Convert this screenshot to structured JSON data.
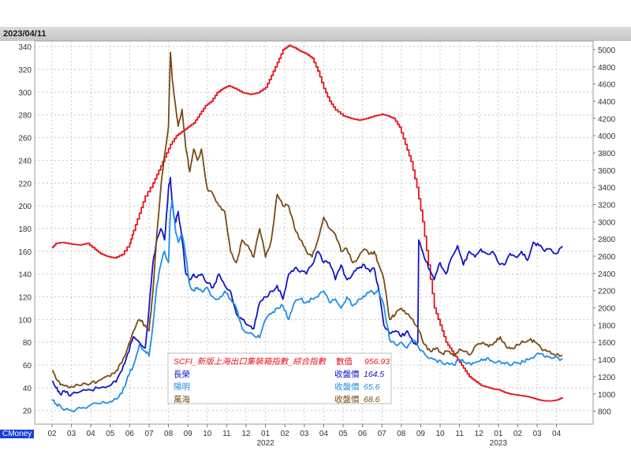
{
  "header": {
    "date": "2023/04/11"
  },
  "footer": {
    "credit": "CMoney"
  },
  "chart_data": {
    "type": "line",
    "title": "",
    "xlabel": "",
    "ylabel": "",
    "x_ticks": [
      "02",
      "03",
      "04",
      "05",
      "06",
      "07",
      "08",
      "09",
      "10",
      "11",
      "12",
      "01",
      "02",
      "03",
      "04",
      "05",
      "06",
      "07",
      "08",
      "09",
      "10",
      "11",
      "12",
      "01",
      "02",
      "03",
      "04"
    ],
    "year_labels": [
      {
        "label": "2022",
        "tick_index": 11
      },
      {
        "label": "2023",
        "tick_index": 23
      }
    ],
    "y_left": {
      "ticks": [
        20,
        40,
        60,
        80,
        100,
        120,
        140,
        160,
        180,
        200,
        220,
        240,
        260,
        280,
        300,
        320,
        340
      ],
      "ylim": [
        8,
        345
      ]
    },
    "y_right": {
      "ticks": [
        800,
        1000,
        1200,
        1400,
        1600,
        1800,
        2000,
        2200,
        2400,
        2600,
        2800,
        3000,
        3200,
        3400,
        3600,
        3800,
        4000,
        4200,
        4400,
        4600,
        4800,
        5000
      ],
      "ylim": [
        650,
        5100
      ]
    },
    "legend": {
      "position": "bottom-center",
      "entries": [
        {
          "name": "SCFI_新版上海出口集裝箱指數_綜合指數",
          "value_label": "數值",
          "value": "956.93",
          "color": "#e8141b"
        },
        {
          "name": "長榮",
          "value_label": "收盤價",
          "value": "164.5",
          "color": "#1414c8"
        },
        {
          "name": "陽明",
          "value_label": "收盤價",
          "value": "65.6",
          "color": "#1e8fe6"
        },
        {
          "name": "萬海",
          "value_label": "收盤價",
          "value": "68.6",
          "color": "#7a4a14"
        }
      ]
    },
    "series": [
      {
        "name": "SCFI_新版上海出口集裝箱指數_綜合指數",
        "axis": "right",
        "color": "#e8141b",
        "x": [
          0,
          0.2,
          0.5,
          1.0,
          1.4,
          1.8,
          2.2,
          2.5,
          2.8,
          3.2,
          3.6,
          4.0,
          4.2,
          4.5,
          4.8,
          5.2,
          5.5,
          5.8,
          6.1,
          6.4,
          6.7,
          7.0,
          7.3,
          7.6,
          7.9,
          8.2,
          8.5,
          8.8,
          9.1,
          9.4,
          9.8,
          10.2,
          10.6,
          11.0,
          11.3,
          11.6,
          11.9,
          12.2,
          12.5,
          12.8,
          13.1,
          13.4,
          13.7,
          14.0,
          14.3,
          14.6,
          15.0,
          15.4,
          15.8,
          16.2,
          16.6,
          17.0,
          17.3,
          17.6,
          17.9,
          18.2,
          18.5,
          18.8,
          19.1,
          19.4,
          19.7,
          20.0,
          20.3,
          20.6,
          20.9,
          21.2,
          21.5,
          21.8,
          22.1,
          22.4,
          22.7,
          23.0,
          23.3,
          23.6,
          23.9,
          24.2,
          24.5,
          24.8,
          25.1,
          25.4,
          25.7,
          26.0,
          26.3
        ],
        "values": [
          2700,
          2750,
          2760,
          2740,
          2730,
          2750,
          2680,
          2630,
          2600,
          2580,
          2620,
          2750,
          2900,
          3100,
          3300,
          3450,
          3600,
          3750,
          3900,
          4000,
          4050,
          4100,
          4150,
          4250,
          4350,
          4400,
          4500,
          4550,
          4580,
          4550,
          4500,
          4480,
          4500,
          4560,
          4700,
          4850,
          5000,
          5050,
          5020,
          4980,
          4950,
          4900,
          4750,
          4550,
          4400,
          4300,
          4230,
          4200,
          4180,
          4200,
          4230,
          4250,
          4230,
          4200,
          4100,
          3900,
          3700,
          3400,
          3000,
          2500,
          2000,
          1800,
          1600,
          1500,
          1400,
          1300,
          1200,
          1150,
          1100,
          1080,
          1060,
          1050,
          1020,
          1000,
          990,
          980,
          970,
          950,
          930,
          920,
          920,
          930,
          960
        ]
      },
      {
        "name": "長榮",
        "axis": "left",
        "color": "#1414c8",
        "x": [
          0,
          0.2,
          0.4,
          0.7,
          1.0,
          1.5,
          2.0,
          2.5,
          3.0,
          3.3,
          3.6,
          3.9,
          4.2,
          4.5,
          4.8,
          5.0,
          5.2,
          5.4,
          5.6,
          5.8,
          6.0,
          6.1,
          6.2,
          6.35,
          6.5,
          6.7,
          6.9,
          7.1,
          7.3,
          7.5,
          7.7,
          8.0,
          8.3,
          8.6,
          8.9,
          9.2,
          9.5,
          9.8,
          10.1,
          10.4,
          10.7,
          11.0,
          11.3,
          11.6,
          11.9,
          12.2,
          12.5,
          12.8,
          13.1,
          13.4,
          13.7,
          14.0,
          14.3,
          14.6,
          14.9,
          15.2,
          15.5,
          15.8,
          16.1,
          16.4,
          16.6,
          16.8,
          17.1,
          17.4,
          17.7,
          18.0,
          18.3,
          18.6,
          18.8,
          18.85,
          18.9,
          19.1,
          19.4,
          19.7,
          20.0,
          20.3,
          20.6,
          20.9,
          21.2,
          21.5,
          21.8,
          22.1,
          22.4,
          22.7,
          23.0,
          23.3,
          23.6,
          23.9,
          24.2,
          24.5,
          24.8,
          25.1,
          25.4,
          25.7,
          26.0,
          26.3
        ],
        "values": [
          45,
          40,
          35,
          36,
          34,
          37,
          38,
          40,
          42,
          45,
          55,
          70,
          85,
          80,
          75,
          110,
          150,
          170,
          180,
          170,
          215,
          225,
          200,
          185,
          195,
          170,
          140,
          135,
          140,
          138,
          140,
          132,
          128,
          140,
          130,
          125,
          105,
          100,
          95,
          92,
          115,
          120,
          125,
          130,
          118,
          140,
          145,
          142,
          140,
          148,
          160,
          150,
          150,
          135,
          148,
          135,
          140,
          145,
          148,
          142,
          145,
          130,
          95,
          88,
          90,
          85,
          90,
          80,
          78,
          80,
          170,
          160,
          145,
          135,
          150,
          140,
          155,
          165,
          148,
          160,
          155,
          162,
          158,
          160,
          150,
          148,
          158,
          155,
          160,
          152,
          168,
          165,
          160,
          162,
          158,
          164.5
        ]
      },
      {
        "name": "陽明",
        "axis": "left",
        "color": "#1e8fe6",
        "x": [
          0,
          0.2,
          0.5,
          1.0,
          1.5,
          2.0,
          2.5,
          3.0,
          3.3,
          3.6,
          3.9,
          4.2,
          4.5,
          4.8,
          5.0,
          5.2,
          5.4,
          5.6,
          5.8,
          6.0,
          6.1,
          6.2,
          6.35,
          6.5,
          6.7,
          6.9,
          7.1,
          7.3,
          7.5,
          7.7,
          8.0,
          8.3,
          8.6,
          8.9,
          9.2,
          9.5,
          9.8,
          10.1,
          10.4,
          10.7,
          11.0,
          11.3,
          11.6,
          11.9,
          12.2,
          12.5,
          12.8,
          13.1,
          13.4,
          13.7,
          14.0,
          14.3,
          14.6,
          14.9,
          15.2,
          15.5,
          15.8,
          16.1,
          16.4,
          16.6,
          16.8,
          17.1,
          17.4,
          17.7,
          18.0,
          18.3,
          18.6,
          18.9,
          19.2,
          19.5,
          19.8,
          20.1,
          20.4,
          20.7,
          21.0,
          21.3,
          21.6,
          21.9,
          22.2,
          22.5,
          22.8,
          23.1,
          23.4,
          23.7,
          24.0,
          24.3,
          24.6,
          24.9,
          25.2,
          25.5,
          25.8,
          26.3
        ],
        "values": [
          30,
          26,
          22,
          20,
          22,
          25,
          26,
          28,
          30,
          35,
          50,
          60,
          78,
          72,
          68,
          95,
          130,
          148,
          160,
          150,
          195,
          205,
          180,
          168,
          175,
          155,
          130,
          125,
          128,
          125,
          128,
          120,
          118,
          125,
          118,
          110,
          92,
          88,
          86,
          84,
          100,
          105,
          110,
          112,
          100,
          115,
          118,
          115,
          118,
          120,
          125,
          115,
          118,
          110,
          120,
          112,
          118,
          120,
          125,
          122,
          126,
          112,
          82,
          78,
          80,
          75,
          82,
          75,
          70,
          66,
          64,
          62,
          62,
          60,
          65,
          62,
          60,
          63,
          64,
          66,
          62,
          63,
          62,
          60,
          62,
          63,
          65,
          68,
          70,
          68,
          66,
          65.6
        ]
      },
      {
        "name": "萬海",
        "axis": "left",
        "color": "#7a4a14",
        "x": [
          0,
          0.2,
          0.5,
          1.0,
          1.5,
          2.0,
          2.5,
          3.0,
          3.3,
          3.6,
          3.9,
          4.2,
          4.5,
          4.8,
          5.0,
          5.2,
          5.4,
          5.6,
          5.8,
          6.0,
          6.1,
          6.2,
          6.35,
          6.5,
          6.7,
          6.9,
          7.1,
          7.3,
          7.5,
          7.7,
          8.0,
          8.3,
          8.6,
          8.9,
          9.2,
          9.5,
          9.8,
          10.1,
          10.4,
          10.7,
          11.0,
          11.3,
          11.6,
          11.9,
          12.2,
          12.5,
          12.8,
          13.1,
          13.4,
          13.7,
          14.0,
          14.3,
          14.6,
          14.9,
          15.2,
          15.5,
          15.8,
          16.1,
          16.4,
          16.6,
          16.8,
          17.1,
          17.4,
          17.7,
          18.0,
          18.3,
          18.6,
          18.9,
          19.2,
          19.5,
          19.8,
          20.1,
          20.4,
          20.7,
          21.0,
          21.3,
          21.6,
          21.9,
          22.2,
          22.5,
          22.8,
          23.1,
          23.4,
          23.7,
          24.0,
          24.3,
          24.6,
          24.9,
          25.2,
          25.5,
          25.8,
          26.3
        ],
        "values": [
          55,
          48,
          43,
          41,
          42,
          44,
          47,
          50,
          55,
          62,
          75,
          90,
          100,
          95,
          90,
          125,
          175,
          215,
          245,
          270,
          335,
          310,
          290,
          270,
          285,
          250,
          230,
          250,
          240,
          250,
          215,
          210,
          200,
          195,
          160,
          150,
          170,
          165,
          155,
          180,
          155,
          170,
          210,
          200,
          200,
          180,
          170,
          160,
          155,
          170,
          190,
          180,
          175,
          160,
          162,
          150,
          155,
          162,
          158,
          160,
          150,
          135,
          100,
          105,
          110,
          105,
          100,
          90,
          78,
          72,
          75,
          70,
          72,
          68,
          74,
          72,
          70,
          78,
          80,
          76,
          80,
          85,
          76,
          75,
          78,
          80,
          82,
          80,
          75,
          72,
          70,
          68.6
        ]
      }
    ]
  }
}
